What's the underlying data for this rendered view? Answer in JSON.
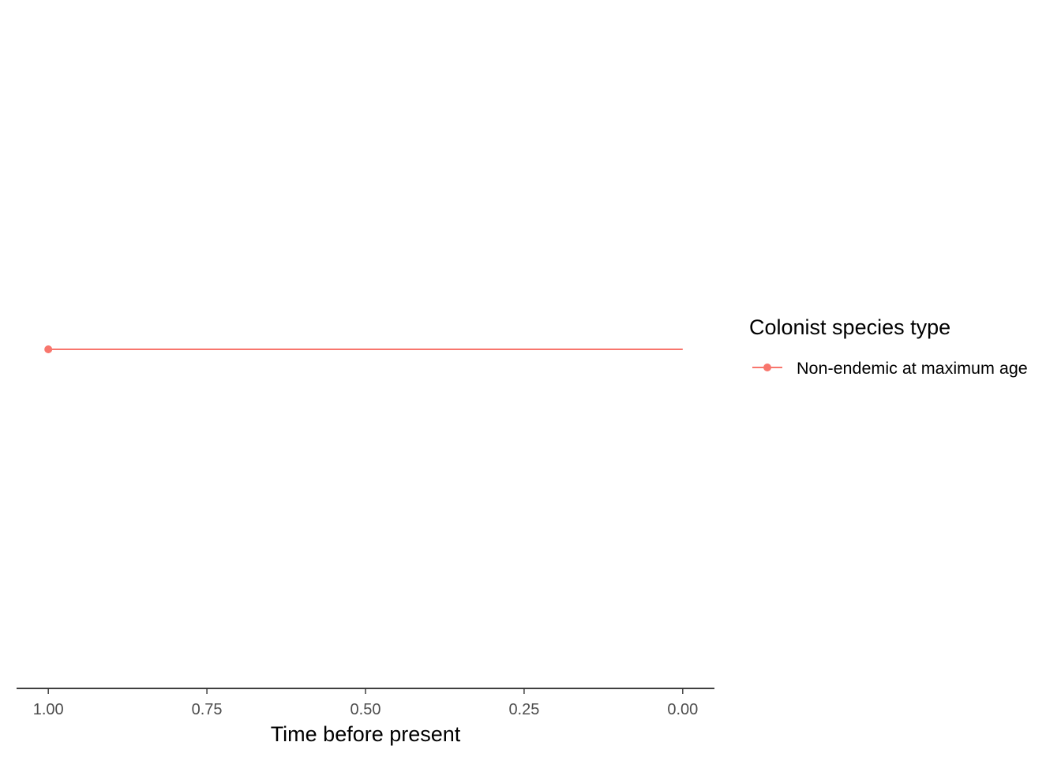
{
  "chart_data": {
    "type": "line",
    "xlabel": "Time before present",
    "ylabel": "",
    "x_reversed": true,
    "xlim": [
      1.05,
      -0.05
    ],
    "x_ticks": [
      1.0,
      0.75,
      0.5,
      0.25,
      0.0
    ],
    "x_tick_labels": [
      "1.00",
      "0.75",
      "0.50",
      "0.25",
      "0.00"
    ],
    "y_axis_visible": false,
    "grid": false,
    "legend": {
      "title": "Colonist species type",
      "position": "right"
    },
    "series": [
      {
        "name": "Non-endemic at maximum age",
        "color": "#f8766d",
        "segments": [
          {
            "x_start": 1.0,
            "x_end": 0.0,
            "y": 1
          }
        ],
        "points": [
          {
            "x": 1.0,
            "y": 1
          }
        ]
      }
    ]
  }
}
